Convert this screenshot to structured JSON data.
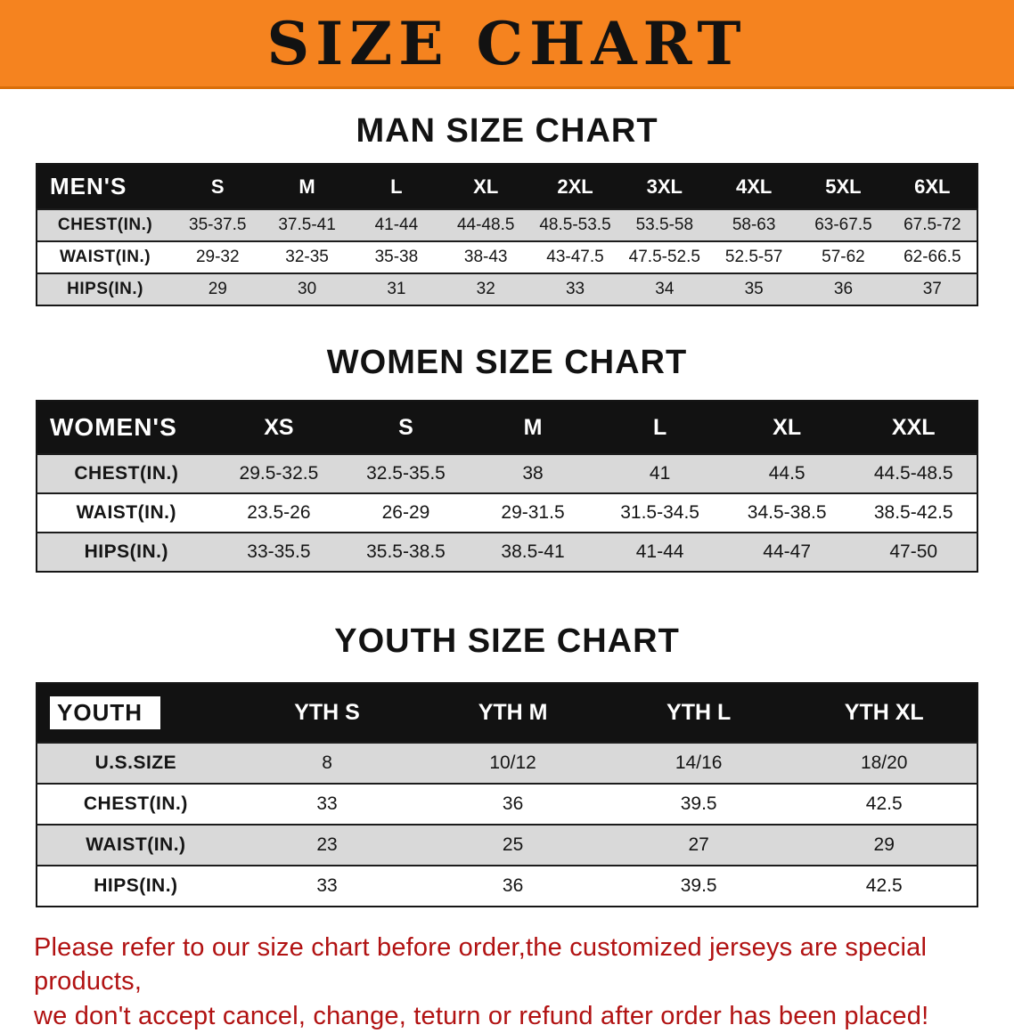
{
  "banner": {
    "title": "SIZE CHART",
    "bg_color": "#f5831f"
  },
  "sections": [
    {
      "id": "men",
      "heading": "MAN SIZE CHART",
      "table": {
        "header": [
          "MEN'S",
          "S",
          "M",
          "L",
          "XL",
          "2XL",
          "3XL",
          "4XL",
          "5XL",
          "6XL"
        ],
        "rows": [
          {
            "label": "CHEST(IN.)",
            "values": [
              "35-37.5",
              "37.5-41",
              "41-44",
              "44-48.5",
              "48.5-53.5",
              "53.5-58",
              "58-63",
              "63-67.5",
              "67.5-72"
            ]
          },
          {
            "label": "WAIST(IN.)",
            "values": [
              "29-32",
              "32-35",
              "35-38",
              "38-43",
              "43-47.5",
              "47.5-52.5",
              "52.5-57",
              "57-62",
              "62-66.5"
            ]
          },
          {
            "label": "HIPS(IN.)",
            "values": [
              "29",
              "30",
              "31",
              "32",
              "33",
              "34",
              "35",
              "36",
              "37"
            ]
          }
        ]
      }
    },
    {
      "id": "women",
      "heading": "WOMEN SIZE CHART",
      "table": {
        "header": [
          "WOMEN'S",
          "XS",
          "S",
          "M",
          "L",
          "XL",
          "XXL"
        ],
        "rows": [
          {
            "label": "CHEST(IN.)",
            "values": [
              "29.5-32.5",
              "32.5-35.5",
              "38",
              "41",
              "44.5",
              "44.5-48.5"
            ]
          },
          {
            "label": "WAIST(IN.)",
            "values": [
              "23.5-26",
              "26-29",
              "29-31.5",
              "31.5-34.5",
              "34.5-38.5",
              "38.5-42.5"
            ]
          },
          {
            "label": "HIPS(IN.)",
            "values": [
              "33-35.5",
              "35.5-38.5",
              "38.5-41",
              "41-44",
              "44-47",
              "47-50"
            ]
          }
        ]
      }
    },
    {
      "id": "youth",
      "heading": "YOUTH SIZE CHART",
      "table": {
        "header": [
          "YOUTH",
          "YTH S",
          "YTH M",
          "YTH L",
          "YTH XL"
        ],
        "rows": [
          {
            "label": "U.S.SIZE",
            "values": [
              "8",
              "10/12",
              "14/16",
              "18/20"
            ]
          },
          {
            "label": "CHEST(IN.)",
            "values": [
              "33",
              "36",
              "39.5",
              "42.5"
            ]
          },
          {
            "label": "WAIST(IN.)",
            "values": [
              "23",
              "25",
              "27",
              "29"
            ]
          },
          {
            "label": "HIPS(IN.)",
            "values": [
              "33",
              "36",
              "39.5",
              "42.5"
            ]
          }
        ]
      }
    }
  ],
  "disclaimer": {
    "color": "#b11212",
    "lines": [
      "Please refer to our size chart before order,the customized jerseys are special products,",
      "we don't accept cancel, change, teturn or refund after order has been placed!"
    ]
  }
}
